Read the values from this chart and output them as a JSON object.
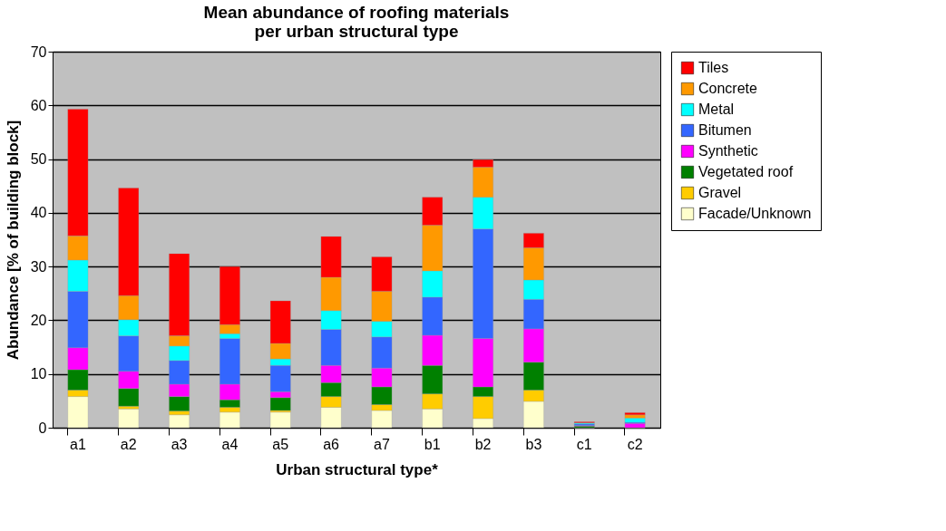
{
  "chart_data": {
    "type": "bar",
    "stacked": true,
    "title": "Mean abundance of roofing materials\nper urban structural type",
    "xlabel": "Urban structural type*",
    "ylabel": "Abundance [% of building block]",
    "categories": [
      "a1",
      "a2",
      "a3",
      "a4",
      "a5",
      "a6",
      "a7",
      "b1",
      "b2",
      "b3",
      "c1",
      "c2"
    ],
    "series": [
      {
        "name": "Facade/Unknown",
        "color": "#ffffcc",
        "values": [
          5.8,
          3.5,
          2.4,
          2.9,
          2.9,
          3.8,
          3.2,
          3.5,
          1.7,
          4.9,
          0,
          null
        ]
      },
      {
        "name": "Gravel",
        "color": "#ffcc00",
        "values": [
          1.2,
          0.5,
          0.7,
          0.9,
          0.3,
          2.0,
          1.1,
          2.8,
          4.1,
          2.1,
          0,
          0
        ]
      },
      {
        "name": "Vegetated roof",
        "color": "#008000",
        "values": [
          3.8,
          3.3,
          2.7,
          1.4,
          2.4,
          2.6,
          3.3,
          5.3,
          1.8,
          5.2,
          0.3,
          0
        ]
      },
      {
        "name": "Synthetic",
        "color": "#ff00ff",
        "values": [
          4.1,
          3.2,
          2.3,
          2.9,
          1.1,
          3.2,
          3.5,
          5.6,
          9.0,
          6.2,
          0.1,
          0.8
        ]
      },
      {
        "name": "Bitumen",
        "color": "#3366ff",
        "values": [
          10.5,
          6.6,
          4.4,
          8.5,
          4.9,
          6.7,
          5.8,
          7.1,
          20.4,
          5.5,
          0.3,
          0.2
        ]
      },
      {
        "name": "Metal",
        "color": "#00ffff",
        "values": [
          5.8,
          3.0,
          2.7,
          0.9,
          1.2,
          3.5,
          2.9,
          4.9,
          5.9,
          3.6,
          0.2,
          0.8
        ]
      },
      {
        "name": "Concrete",
        "color": "#ff9900",
        "values": [
          4.5,
          4.5,
          1.9,
          1.7,
          2.9,
          6.2,
          5.6,
          8.5,
          5.6,
          6.0,
          null,
          0.6
        ]
      },
      {
        "name": "Tiles",
        "color": "#ff0000",
        "values": [
          23.6,
          20.0,
          15.3,
          10.8,
          7.9,
          7.6,
          6.4,
          5.2,
          1.4,
          2.7,
          0.2,
          0.4
        ]
      }
    ],
    "ylim": [
      0,
      70
    ],
    "yticks": [
      0,
      10,
      20,
      30,
      40,
      50,
      60,
      70
    ],
    "grid": "y",
    "legend": "right"
  }
}
